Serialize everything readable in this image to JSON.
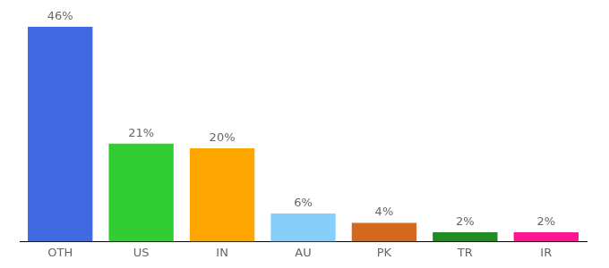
{
  "chart_data": {
    "type": "bar",
    "categories": [
      "OTH",
      "US",
      "IN",
      "AU",
      "PK",
      "TR",
      "IR"
    ],
    "values": [
      46,
      21,
      20,
      6,
      4,
      2,
      2
    ],
    "value_labels": [
      "46%",
      "21%",
      "20%",
      "6%",
      "4%",
      "2%",
      "2%"
    ],
    "colors": [
      "#4169e1",
      "#32cd32",
      "#ffa500",
      "#87cefa",
      "#d2691e",
      "#228b22",
      "#ff1493"
    ],
    "ylim": [
      0,
      46
    ],
    "grid": false,
    "data_labels": true,
    "tick_labels": "x"
  }
}
